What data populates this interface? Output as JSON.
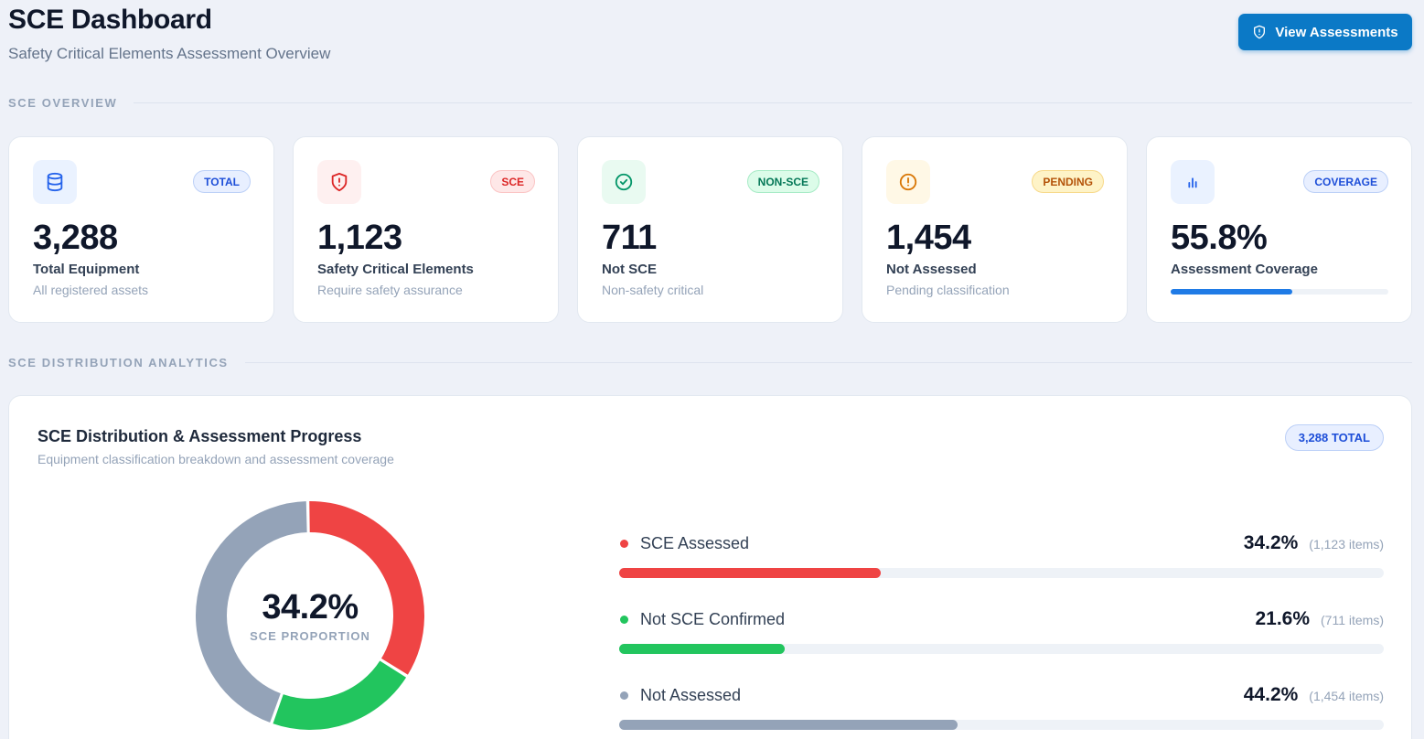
{
  "header": {
    "title": "SCE Dashboard",
    "subtitle": "Safety Critical Elements Assessment Overview",
    "button_label": "View Assessments"
  },
  "sections": {
    "overview": "SCE OVERVIEW",
    "analytics": "SCE DISTRIBUTION ANALYTICS"
  },
  "cards": [
    {
      "badge": "TOTAL",
      "value": "3,288",
      "label": "Total Equipment",
      "sub": "All registered assets",
      "icon": "database-icon",
      "accent": "#2563eb"
    },
    {
      "badge": "SCE",
      "value": "1,123",
      "label": "Safety Critical Elements",
      "sub": "Require safety assurance",
      "icon": "shield-alert-icon",
      "accent": "#dc2626"
    },
    {
      "badge": "NON-SCE",
      "value": "711",
      "label": "Not SCE",
      "sub": "Non-safety critical",
      "icon": "check-circle-icon",
      "accent": "#059669"
    },
    {
      "badge": "PENDING",
      "value": "1,454",
      "label": "Not Assessed",
      "sub": "Pending classification",
      "icon": "alert-circle-icon",
      "accent": "#d97706"
    },
    {
      "badge": "COVERAGE",
      "value": "55.8%",
      "label": "Assessment Coverage",
      "icon": "bar-chart-icon",
      "accent": "#2563eb",
      "progress": 0.558
    }
  ],
  "distribution": {
    "title": "SCE Distribution & Assessment Progress",
    "subtitle": "Equipment classification breakdown and assessment coverage",
    "total_badge": "3,288 TOTAL",
    "center_value": "34.2%",
    "center_label": "SCE PROPORTION",
    "items": [
      {
        "name": "SCE Assessed",
        "pct_label": "34.2%",
        "count_label": "(1,123 items)",
        "pct": 34.2,
        "color": "#ef4444"
      },
      {
        "name": "Not SCE Confirmed",
        "pct_label": "21.6%",
        "count_label": "(711 items)",
        "pct": 21.6,
        "color": "#22c55e"
      },
      {
        "name": "Not Assessed",
        "pct_label": "44.2%",
        "count_label": "(1,454 items)",
        "pct": 44.2,
        "color": "#94a3b8"
      }
    ]
  }
}
